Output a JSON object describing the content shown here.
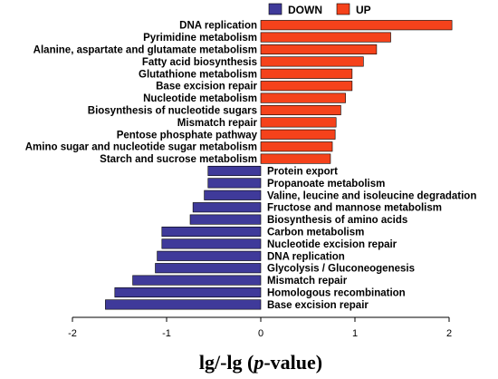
{
  "chart_data": {
    "type": "bar",
    "orientation": "horizontal",
    "xlabel_parts": [
      "lg/-lg (",
      "p",
      "-value)"
    ],
    "xlim": [
      -2,
      2.2
    ],
    "xticks": [
      "-2",
      "-1",
      "0",
      "1",
      "2"
    ],
    "grid": false,
    "legend_position": "top",
    "series": [
      {
        "name": "UP",
        "color": "#f5421b",
        "label_side": "left",
        "categories": [
          "DNA replication",
          "Pyrimidine metabolism",
          "Alanine, aspartate and glutamate metabolism",
          "Fatty acid biosynthesis",
          "Glutathione metabolism",
          "Base excision repair",
          "Nucleotide metabolism",
          "Biosynthesis of nucleotide sugars",
          "Mismatch repair",
          "Pentose phosphate pathway",
          "Amino sugar and nucleotide sugar metabolism",
          "Starch and sucrose metabolism"
        ],
        "values": [
          2.03,
          1.38,
          1.23,
          1.09,
          0.97,
          0.97,
          0.9,
          0.85,
          0.8,
          0.79,
          0.76,
          0.74
        ]
      },
      {
        "name": "DOWN",
        "color": "#3f3a9a",
        "label_side": "right",
        "categories": [
          "Protein export",
          "Propanoate metabolism",
          "Valine, leucine and isoleucine degradation",
          "Fructose and mannose metabolism",
          "Biosynthesis of amino acids",
          "Carbon metabolism",
          "Nucleotide excision repair",
          "DNA replication",
          "Glycolysis / Gluconeogenesis",
          "Mismatch repair",
          "Homologous recombination",
          "Base excision repair"
        ],
        "values": [
          -0.56,
          -0.56,
          -0.6,
          -0.72,
          -0.75,
          -1.05,
          -1.05,
          -1.1,
          -1.12,
          -1.36,
          -1.55,
          -1.65
        ]
      }
    ],
    "legend": [
      {
        "label": "DOWN",
        "color": "#3f3a9a"
      },
      {
        "label": "UP",
        "color": "#f5421b"
      }
    ]
  }
}
